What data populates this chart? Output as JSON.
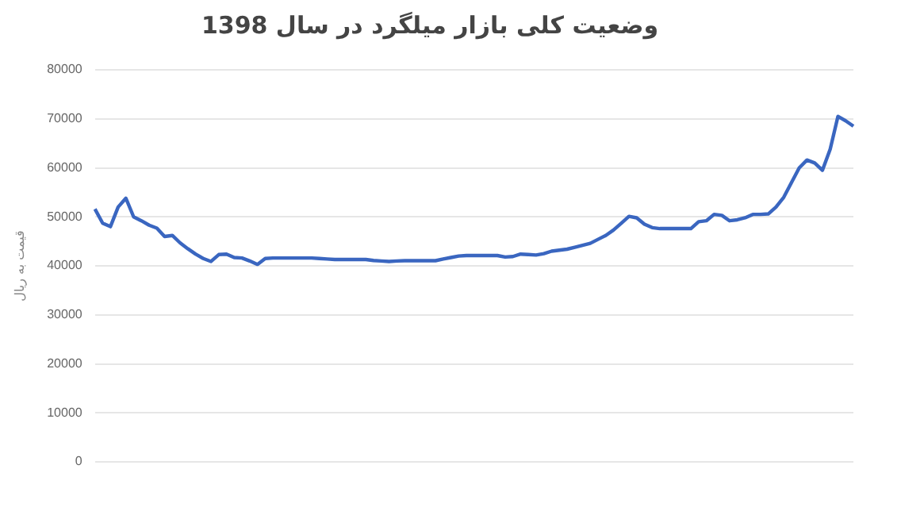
{
  "chart_data": {
    "type": "line",
    "title": "وضعیت کلی بازار میلگرد در سال 1398",
    "ylabel": "قیمت به ریال",
    "categories": [
      null,
      null,
      null,
      null,
      null,
      null,
      null,
      null,
      null,
      null,
      null,
      null,
      null,
      null,
      null,
      null,
      null,
      null,
      null,
      null,
      null,
      null,
      null,
      null,
      null,
      null,
      null,
      null,
      null,
      null,
      null,
      null,
      null,
      null,
      null,
      null,
      null,
      null,
      null,
      null,
      null,
      null,
      null,
      null,
      null,
      null,
      null,
      null,
      null,
      null,
      null,
      null,
      null,
      null,
      null,
      null,
      null,
      null,
      null,
      null,
      null,
      null,
      null,
      null,
      null,
      null,
      null,
      null,
      null,
      null,
      null,
      null,
      null,
      null,
      null,
      null,
      null,
      null,
      null,
      null,
      null,
      null,
      null,
      null,
      null,
      null,
      null,
      null,
      null,
      null,
      null,
      null,
      null,
      null,
      null,
      null,
      null,
      null,
      null
    ],
    "series": [
      {
        "color": "#3a66c0",
        "values": [
          51600,
          48700,
          48000,
          52000,
          53800,
          50000,
          49200,
          48300,
          47700,
          46000,
          46200,
          44700,
          43500,
          42400,
          41500,
          40900,
          42300,
          42400,
          41700,
          41600,
          41000,
          40300,
          41500,
          41600,
          41600,
          41600,
          41600,
          41600,
          41600,
          41500,
          41400,
          41300,
          41300,
          41300,
          41300,
          41300,
          41100,
          41000,
          40900,
          41000,
          41050,
          41050,
          41050,
          41050,
          41050,
          41400,
          41700,
          42000,
          42100,
          42100,
          42100,
          42100,
          42100,
          41800,
          41900,
          42400,
          42300,
          42200,
          42500,
          43000,
          43200,
          43400,
          43800,
          44200,
          44600,
          45400,
          46200,
          47300,
          48700,
          50100,
          49800,
          48500,
          47800,
          47600,
          47600,
          47600,
          47600,
          47600,
          49000,
          49200,
          50500,
          50300,
          49200,
          49400,
          49800,
          50500,
          50500,
          50600,
          52000,
          54000,
          57000,
          60000,
          61600,
          61000,
          59500,
          63800,
          70500,
          69600,
          68500
        ]
      }
    ],
    "ylim": [
      0,
      80000
    ],
    "yticks": [
      0,
      10000,
      20000,
      30000,
      40000,
      50000,
      60000,
      70000,
      80000
    ],
    "grid": "y",
    "legend": false,
    "marker": "none",
    "line_style": "solid"
  }
}
